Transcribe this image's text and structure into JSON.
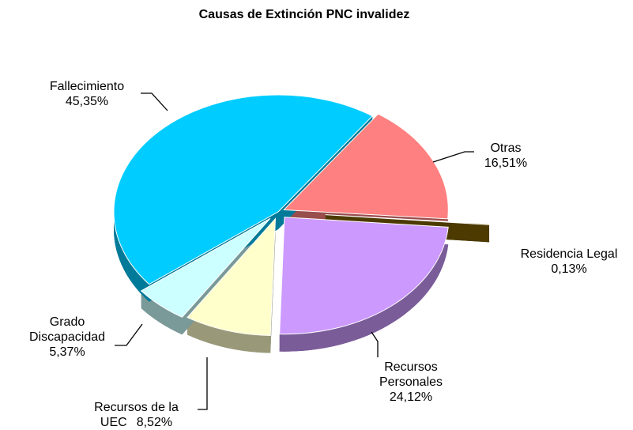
{
  "chart_data": {
    "type": "pie",
    "title": "Causas de Extinción PNC invalidez",
    "categories": [
      "Otras",
      "Residencia Legal",
      "Recursos Personales",
      "Recursos de la UEC",
      "Grado Discapacidad",
      "Fallecimiento"
    ],
    "values": [
      16.51,
      0.13,
      24.12,
      8.52,
      5.37,
      45.35
    ],
    "value_labels": [
      "16,51%",
      "0,13%",
      "24,12%",
      "8,52%",
      "5,37%",
      "45,35%"
    ],
    "colors": [
      "#ff8080",
      "#806000",
      "#cc99ff",
      "#ffffcc",
      "#ccffff",
      "#00ccff"
    ]
  }
}
